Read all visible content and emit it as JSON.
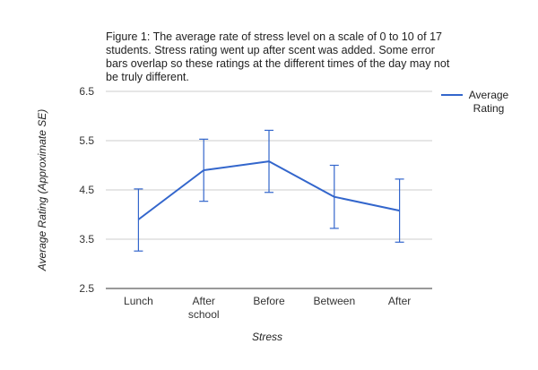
{
  "chart_data": {
    "type": "line",
    "title_lines": [
      "Figure 1: The average rate of stress level on a scale of 0 to 10 of 17",
      "students. Stress rating went up after scent was added. Some error",
      "bars overlap so these ratings at the different times of the day may not",
      "be truly different."
    ],
    "xlabel": "Stress",
    "ylabel": "Average Rating (Approximate SE)",
    "ylim": [
      2.5,
      6.5
    ],
    "yticks": [
      "6.5",
      "5.5",
      "4.5",
      "3.5",
      "2.5"
    ],
    "ytick_values": [
      6.5,
      5.5,
      4.5,
      3.5,
      2.5
    ],
    "categories": [
      [
        "Lunch"
      ],
      [
        "After",
        "school"
      ],
      [
        "Before"
      ],
      [
        "Between"
      ],
      [
        "After"
      ]
    ],
    "series": [
      {
        "name": "Average Rating",
        "legend_lines": [
          "Average",
          "Rating"
        ],
        "color": "#3366cc",
        "values": [
          3.9,
          4.9,
          5.08,
          4.36,
          4.08
        ],
        "error_upper": [
          4.52,
          5.53,
          5.71,
          5.0,
          4.72
        ],
        "error_lower": [
          3.26,
          4.27,
          4.45,
          3.72,
          3.44
        ]
      }
    ],
    "grid": true,
    "legend_position": "top-right"
  }
}
